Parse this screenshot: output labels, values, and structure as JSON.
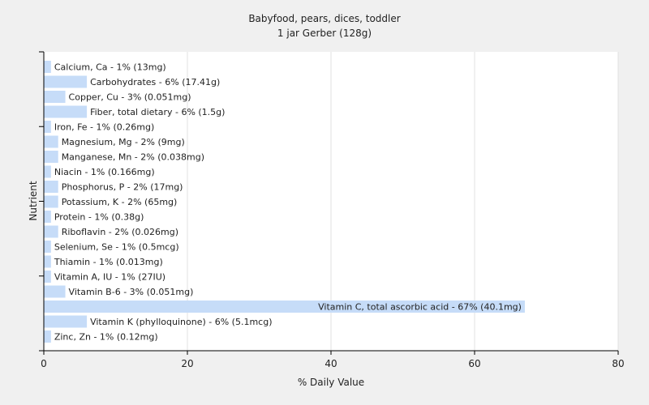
{
  "chart_data": {
    "type": "bar",
    "orientation": "horizontal",
    "title": "Babyfood, pears, dices, toddler",
    "subtitle": "1 jar Gerber (128g)",
    "xlabel": "% Daily Value",
    "ylabel": "Nutrient",
    "xlim": [
      0,
      80
    ],
    "xticks": [
      0,
      20,
      40,
      60,
      80
    ],
    "grid": true,
    "bar_color": "#c6dcf8",
    "categories": [
      "Calcium, Ca",
      "Carbohydrates",
      "Copper, Cu",
      "Fiber, total dietary",
      "Iron, Fe",
      "Magnesium, Mg",
      "Manganese, Mn",
      "Niacin",
      "Phosphorus, P",
      "Potassium, K",
      "Protein",
      "Riboflavin",
      "Selenium, Se",
      "Thiamin",
      "Vitamin A, IU",
      "Vitamin B-6",
      "Vitamin C, total ascorbic acid",
      "Vitamin K (phylloquinone)",
      "Zinc, Zn"
    ],
    "values": [
      1,
      6,
      3,
      6,
      1,
      2,
      2,
      1,
      2,
      2,
      1,
      2,
      1,
      1,
      1,
      3,
      67,
      6,
      1
    ],
    "labels": [
      "Calcium, Ca - 1% (13mg)",
      "Carbohydrates - 6% (17.41g)",
      "Copper, Cu - 3% (0.051mg)",
      "Fiber, total dietary - 6% (1.5g)",
      "Iron, Fe - 1% (0.26mg)",
      "Magnesium, Mg - 2% (9mg)",
      "Manganese, Mn - 2% (0.038mg)",
      "Niacin - 1% (0.166mg)",
      "Phosphorus, P - 2% (17mg)",
      "Potassium, K - 2% (65mg)",
      "Protein - 1% (0.38g)",
      "Riboflavin - 2% (0.026mg)",
      "Selenium, Se - 1% (0.5mcg)",
      "Thiamin - 1% (0.013mg)",
      "Vitamin A, IU - 1% (27IU)",
      "Vitamin B-6 - 3% (0.051mg)",
      "Vitamin C, total ascorbic acid - 67% (40.1mg)",
      "Vitamin K (phylloquinone) - 6% (5.1mcg)",
      "Zinc, Zn - 1% (0.12mg)"
    ]
  }
}
